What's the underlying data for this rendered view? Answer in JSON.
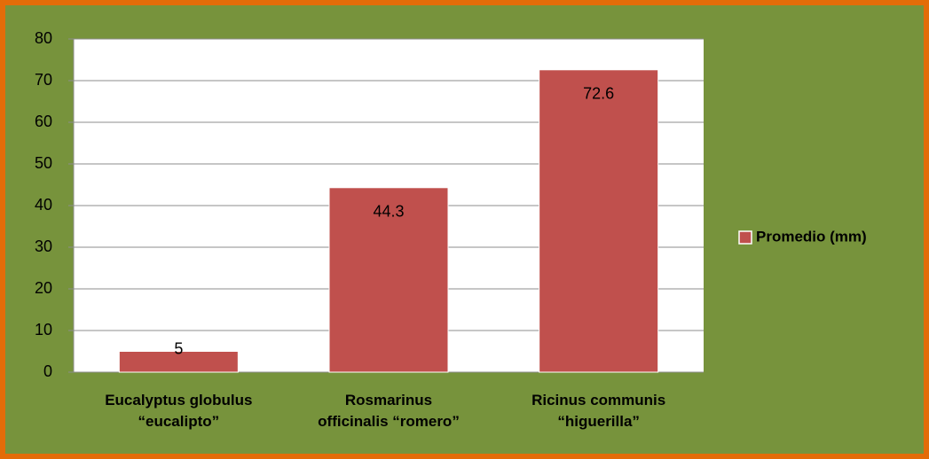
{
  "chart_data": {
    "type": "bar",
    "categories": [
      "Eucalyptus globulus\n“eucalipto”",
      "Rosmarinus\nofficinalis “romero”",
      "Ricinus communis\n“higuerilla”"
    ],
    "series": [
      {
        "name": "Promedio (mm)",
        "color": "#c0504d",
        "values": [
          5,
          44.3,
          72.6
        ]
      }
    ],
    "ylim": [
      0,
      80
    ],
    "yticks": [
      0,
      10,
      20,
      30,
      40,
      50,
      60,
      70,
      80
    ],
    "grid": true,
    "legend": "right"
  }
}
